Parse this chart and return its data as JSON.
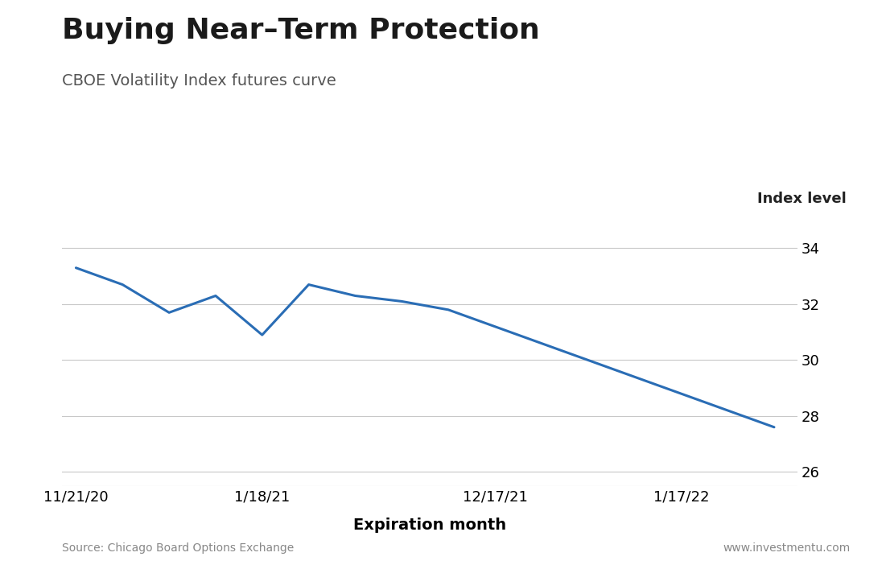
{
  "title": "Buying Near–Term Protection",
  "subtitle": "CBOE Volatility Index futures curve",
  "ylabel": "Index level",
  "xlabel": "Expiration month",
  "source_left": "Source: Chicago Board Options Exchange",
  "source_right": "www.investmentu.com",
  "x_values": [
    0,
    1,
    2,
    3,
    4,
    5,
    6,
    7,
    8,
    9,
    10,
    11,
    12,
    13,
    14,
    15
  ],
  "y_values": [
    33.3,
    32.7,
    31.7,
    32.3,
    30.9,
    32.7,
    32.3,
    32.1,
    31.8,
    31.2,
    30.6,
    30.0,
    29.4,
    28.8,
    28.2,
    27.6
  ],
  "x_tick_positions": [
    0,
    4,
    9,
    13
  ],
  "x_tick_labels": [
    "11/21/20",
    "1/18/21",
    "12/17/21",
    "1/17/22"
  ],
  "y_ticks": [
    26,
    28,
    30,
    32,
    34
  ],
  "ylim": [
    25.5,
    35.2
  ],
  "xlim": [
    -0.3,
    15.5
  ],
  "line_color": "#2a6db5",
  "line_width": 2.2,
  "background_color": "#ffffff",
  "grid_color": "#c8c8c8",
  "title_fontsize": 26,
  "subtitle_fontsize": 14,
  "ylabel_fontsize": 13,
  "xlabel_fontsize": 14,
  "tick_fontsize": 13
}
